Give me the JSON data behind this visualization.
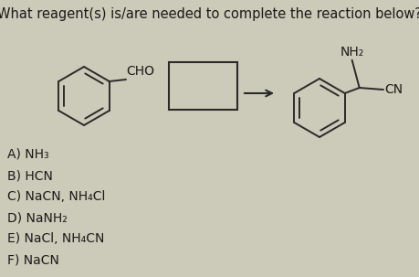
{
  "title": "What reagent(s) is/are needed to complete the reaction below?",
  "title_fontsize": 10.5,
  "bg_color": "#cccab8",
  "text_color": "#1a1a1a",
  "options": [
    "A) NH₃",
    "B) HCN",
    "C) NaCN, NH₄Cl",
    "D) NaNH₂",
    "E) NaCl, NH₄CN",
    "F) NaCN"
  ],
  "options_fontsize": 10,
  "reactant_cho": "CHO",
  "product_nh2": "NH₂",
  "product_cn": "CN",
  "ring_lw": 1.4
}
